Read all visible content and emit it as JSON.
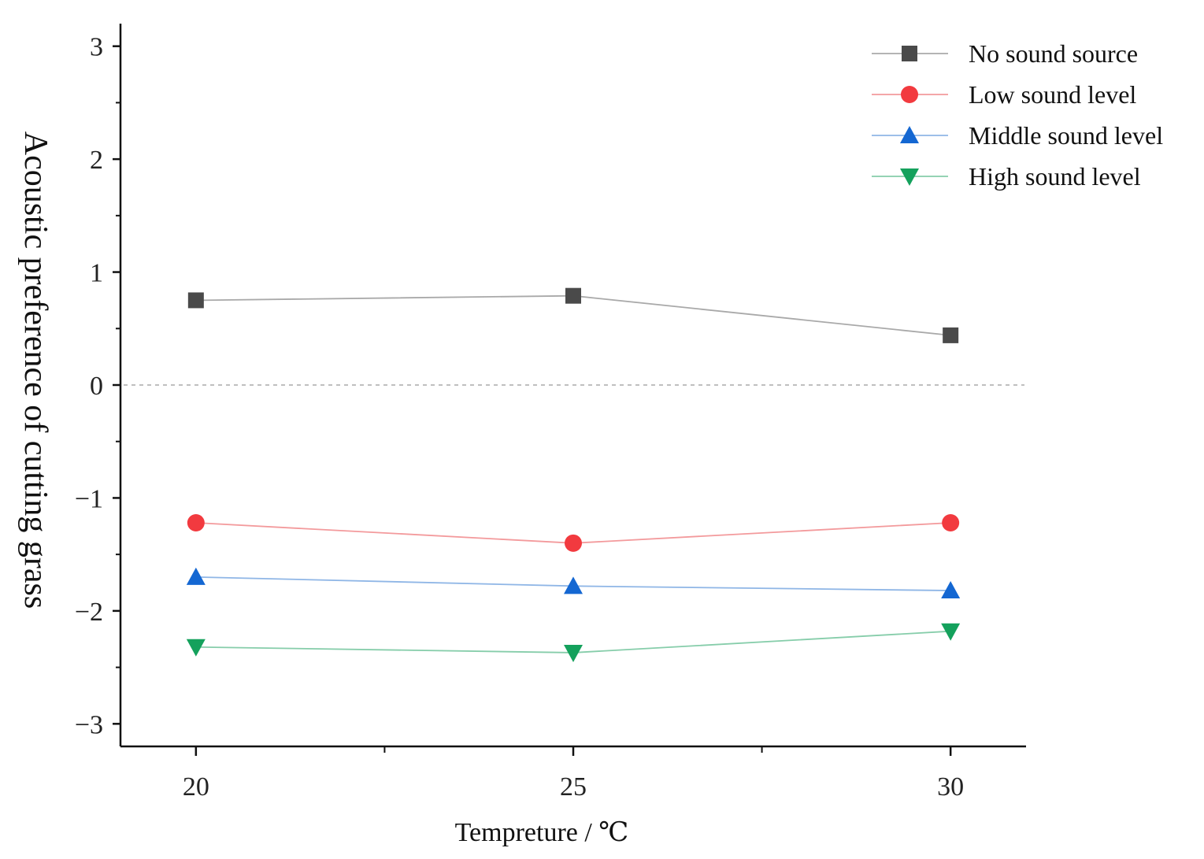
{
  "chart_data": {
    "type": "line",
    "title": "",
    "xlabel": "Tempreture / ℃",
    "ylabel": "Acoustic preference of cutting grass",
    "x": [
      20,
      25,
      30
    ],
    "xlim": [
      19,
      31
    ],
    "ylim": [
      -3.2,
      3.2
    ],
    "xticks": [
      20,
      25,
      30
    ],
    "xticks_minor": [
      22.5,
      27.5
    ],
    "yticks": [
      -3,
      -2,
      -1,
      0,
      1,
      2,
      3
    ],
    "ytick_labels": [
      "−3",
      "−2",
      "−1",
      "0",
      "1",
      "2",
      "3"
    ],
    "reference_line": 0,
    "legend_position": "top-right",
    "series": [
      {
        "name": "No sound source",
        "marker": "square",
        "color": "#4a4a4a",
        "line_color": "#a9a9a9",
        "values": [
          0.75,
          0.79,
          0.44
        ]
      },
      {
        "name": "Low sound level",
        "marker": "circle",
        "color": "#f23a3f",
        "line_color": "#f39a9c",
        "values": [
          -1.22,
          -1.4,
          -1.22
        ]
      },
      {
        "name": "Middle sound level",
        "marker": "triangle-up",
        "color": "#1467d2",
        "line_color": "#8fb6e6",
        "values": [
          -1.7,
          -1.78,
          -1.82
        ]
      },
      {
        "name": "High sound level",
        "marker": "triangle-down",
        "color": "#14a15c",
        "line_color": "#86cdaa",
        "values": [
          -2.32,
          -2.37,
          -2.18
        ]
      }
    ]
  }
}
